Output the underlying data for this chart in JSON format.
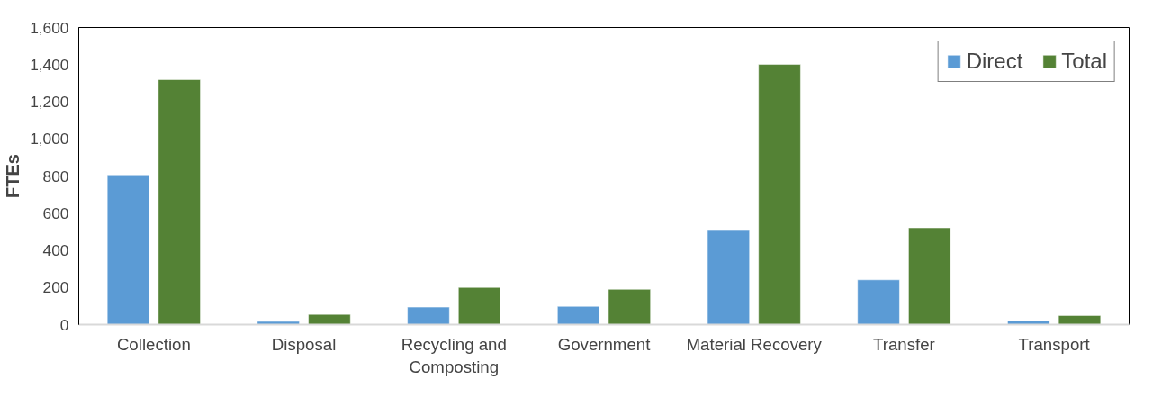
{
  "chart_data": {
    "type": "bar",
    "ylabel": "FTEs",
    "categories": [
      "Collection",
      "Disposal",
      "Recycling and Composting",
      "Government",
      "Material Recovery",
      "Transfer",
      "Transport"
    ],
    "series": [
      {
        "name": "Direct",
        "color": "#5b9bd5",
        "values": [
          806,
          17,
          94,
          98,
          511,
          241,
          22
        ]
      },
      {
        "name": "Total",
        "color": "#548235",
        "values": [
          1319,
          55,
          200,
          190,
          1401,
          521,
          49
        ]
      }
    ],
    "ylim": [
      0,
      1600
    ],
    "yticks": [
      {
        "value": 0,
        "label": "0"
      },
      {
        "value": 200,
        "label": "200"
      },
      {
        "value": 400,
        "label": "400"
      },
      {
        "value": 600,
        "label": "600"
      },
      {
        "value": 800,
        "label": "800"
      },
      {
        "value": 1000,
        "label": "1,000"
      },
      {
        "value": 1200,
        "label": "1,200"
      },
      {
        "value": 1400,
        "label": "1,400"
      },
      {
        "value": 1600,
        "label": "1,600"
      }
    ],
    "grid": false,
    "legend": "top right"
  }
}
